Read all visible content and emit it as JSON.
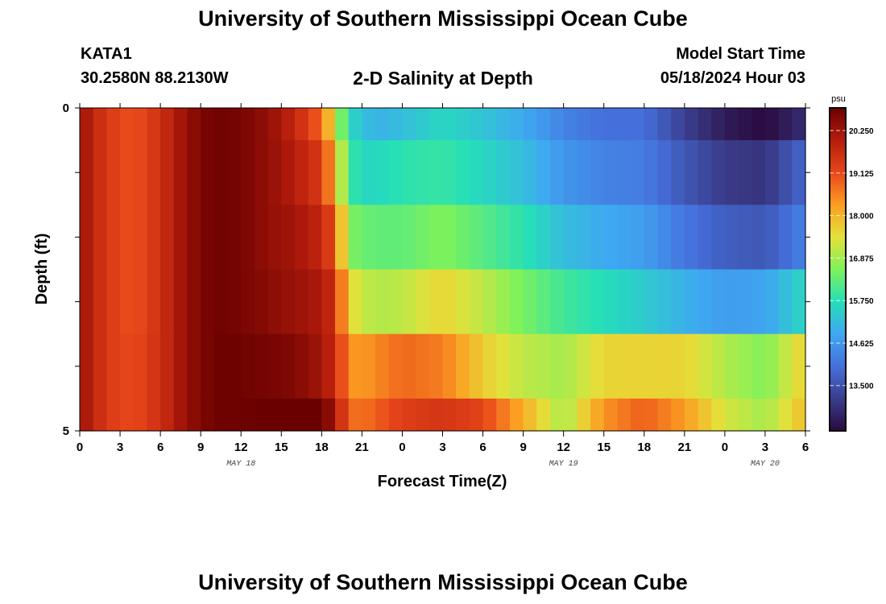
{
  "header": {
    "title": "University of Southern Mississippi Ocean Cube",
    "station": "KATA1",
    "coords": "30.2580N  88.2130W",
    "plot_title": "2-D Salinity at Depth",
    "model_start_label": "Model Start Time",
    "model_start_value": "05/18/2024 Hour 03"
  },
  "footer": {
    "title": "University of Southern Mississippi Ocean Cube"
  },
  "chart_data": {
    "type": "heatmap",
    "title": "2-D Salinity at Depth",
    "xlabel": "Forecast Time(Z)",
    "ylabel": "Depth (ft)",
    "y_ticks": [
      "0",
      "5"
    ],
    "y_range": [
      0,
      5
    ],
    "x_range_hours": [
      0,
      54
    ],
    "x_tick_labels": [
      "0",
      "3",
      "6",
      "9",
      "12",
      "15",
      "18",
      "21",
      "0",
      "3",
      "6",
      "9",
      "12",
      "15",
      "18",
      "21",
      "0",
      "3",
      "6"
    ],
    "date_labels": [
      {
        "label": "MAY 18",
        "hour": 12
      },
      {
        "label": "MAY 19",
        "hour": 36
      },
      {
        "label": "MAY 20",
        "hour": 51
      }
    ],
    "colorbar": {
      "unit": "psu",
      "min": 12.3,
      "max": 20.85,
      "tick_labels": [
        "20.250",
        "19.125",
        "18.000",
        "16.875",
        "15.750",
        "14.625",
        "13.500"
      ],
      "tick_values": [
        20.25,
        19.125,
        18.0,
        16.875,
        15.75,
        14.625,
        13.5
      ],
      "colors": [
        "#2a0a3e",
        "#3a3d8c",
        "#4570dc",
        "#3fa8f2",
        "#25dfb8",
        "#7ef25a",
        "#e4e13a",
        "#fb9e22",
        "#e8461a",
        "#b51d0c",
        "#6a0000"
      ]
    },
    "depth_layers": [
      "0-0.5 ft",
      "0.5-1.5 ft",
      "1.5-2.5 ft",
      "2.5-3.5 ft",
      "3.5-4.5 ft",
      "4.5-5 ft"
    ],
    "time_hours": [
      0,
      2,
      4,
      6,
      8,
      10,
      12,
      14,
      16,
      18,
      19,
      20,
      21,
      22,
      24,
      27,
      30,
      33,
      36,
      39,
      42,
      45,
      48,
      51,
      54
    ],
    "salinity_psu": [
      [
        20.3,
        19.4,
        19.0,
        19.6,
        20.4,
        20.8,
        20.7,
        20.4,
        19.8,
        18.8,
        17.3,
        15.6,
        15.3,
        15.0,
        15.2,
        15.6,
        15.3,
        14.9,
        14.3,
        14.0,
        14.0,
        13.2,
        12.6,
        12.3,
        12.9
      ],
      [
        20.3,
        19.4,
        19.0,
        19.6,
        20.4,
        20.8,
        20.7,
        20.4,
        20.0,
        19.4,
        18.0,
        16.0,
        15.6,
        15.6,
        15.8,
        15.9,
        15.6,
        15.2,
        14.6,
        14.3,
        14.2,
        13.6,
        13.1,
        13.0,
        13.9
      ],
      [
        20.3,
        19.4,
        19.0,
        19.6,
        20.4,
        20.8,
        20.7,
        20.4,
        20.2,
        19.8,
        19.0,
        16.6,
        16.4,
        16.3,
        16.3,
        16.6,
        16.2,
        15.8,
        15.2,
        14.9,
        14.7,
        14.1,
        13.7,
        13.6,
        14.3
      ],
      [
        20.3,
        19.4,
        19.0,
        19.6,
        20.4,
        20.8,
        20.7,
        20.5,
        20.3,
        20.1,
        19.6,
        17.6,
        17.2,
        17.0,
        17.1,
        17.6,
        17.1,
        16.5,
        16.0,
        15.7,
        15.4,
        15.0,
        14.7,
        14.8,
        15.6
      ],
      [
        20.3,
        19.4,
        19.1,
        19.6,
        20.4,
        20.8,
        20.8,
        20.7,
        20.6,
        20.2,
        19.7,
        18.4,
        18.3,
        18.5,
        18.8,
        18.6,
        17.7,
        17.1,
        16.9,
        17.6,
        17.6,
        17.6,
        17.0,
        16.6,
        17.7
      ],
      [
        20.3,
        19.4,
        19.1,
        19.6,
        20.4,
        20.8,
        20.8,
        20.9,
        21.0,
        20.8,
        20.2,
        18.8,
        18.7,
        18.9,
        19.3,
        19.5,
        19.2,
        18.1,
        16.9,
        18.4,
        18.9,
        18.3,
        17.3,
        16.9,
        17.9
      ]
    ]
  }
}
